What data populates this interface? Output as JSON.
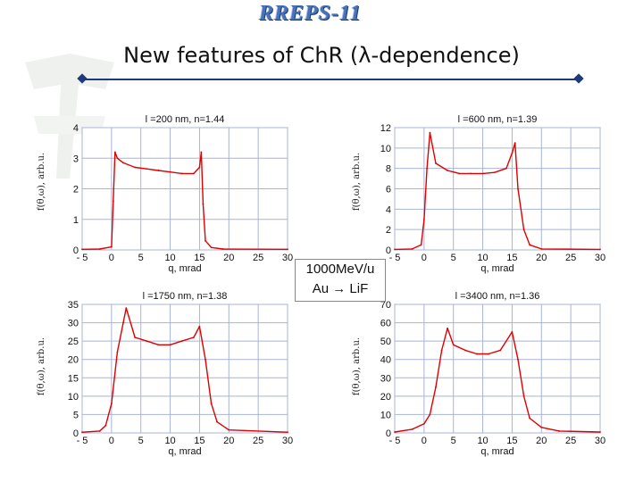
{
  "slide": {
    "logo": "RREPS-11",
    "title": "New features of ChR (λ-dependence)",
    "note_line1": "1000MeV/u",
    "note_line2": "Au → LiF",
    "colors": {
      "curve": "#e00000",
      "grid": "#a8b4d8",
      "rule": "#1f3a7a"
    }
  },
  "chart_data": [
    {
      "type": "line",
      "title": "l =200 nm, n=1.44",
      "xlabel": "q, mrad",
      "ylabel": "f(θ,ω), arb.u.",
      "xlim": [
        -5,
        30
      ],
      "ylim": [
        0,
        4
      ],
      "xticks": [
        -5,
        0,
        5,
        10,
        15,
        20,
        25,
        30
      ],
      "xticklabels": [
        "- 5",
        "0",
        "5",
        "10",
        "15",
        "20",
        "25",
        "30"
      ],
      "yticks": [
        0,
        1,
        2,
        3,
        4
      ],
      "series": [
        {
          "x": [
            -5,
            -2,
            0,
            0.3,
            0.6,
            1,
            2,
            4,
            6,
            8,
            10,
            12,
            14,
            15,
            15.3,
            15.6,
            16,
            17,
            19,
            30
          ],
          "y": [
            0.02,
            0.03,
            0.1,
            1.6,
            3.2,
            3.0,
            2.85,
            2.7,
            2.65,
            2.6,
            2.55,
            2.5,
            2.5,
            2.7,
            3.2,
            1.5,
            0.3,
            0.08,
            0.03,
            0.02
          ]
        }
      ]
    },
    {
      "type": "line",
      "title": "l =600 nm, n=1.39",
      "xlabel": "q, mrad",
      "ylabel": "f(θ,ω), arb.u.",
      "xlim": [
        -5,
        30
      ],
      "ylim": [
        0,
        12
      ],
      "xticks": [
        -5,
        0,
        5,
        10,
        15,
        20,
        25,
        30
      ],
      "xticklabels": [
        "- 5",
        "0",
        "5",
        "10",
        "15",
        "20",
        "25",
        "30"
      ],
      "yticks": [
        0,
        2,
        4,
        6,
        8,
        10,
        12
      ],
      "series": [
        {
          "x": [
            -5,
            -2,
            -0.5,
            0,
            0.5,
            1,
            2,
            4,
            6,
            8,
            10,
            12,
            14,
            15,
            15.5,
            16,
            17,
            18,
            20,
            30
          ],
          "y": [
            0.05,
            0.1,
            0.5,
            3,
            8,
            11.5,
            8.5,
            7.8,
            7.5,
            7.5,
            7.5,
            7.6,
            8.0,
            9.5,
            10.5,
            6,
            2,
            0.5,
            0.1,
            0.05
          ]
        }
      ]
    },
    {
      "type": "line",
      "title": "l =1750 nm, n=1.38",
      "xlabel": "q, mrad",
      "ylabel": "f(θ,ω), arb.u.",
      "xlim": [
        -5,
        30
      ],
      "ylim": [
        0,
        35
      ],
      "xticks": [
        -5,
        0,
        5,
        10,
        15,
        20,
        25,
        30
      ],
      "xticklabels": [
        "- 5",
        "0",
        "5",
        "10",
        "15",
        "20",
        "25",
        "30"
      ],
      "yticks": [
        0,
        5,
        10,
        15,
        20,
        25,
        30,
        35
      ],
      "series": [
        {
          "x": [
            -5,
            -2,
            -1,
            0,
            1,
            2,
            2.5,
            4,
            6,
            8,
            10,
            12,
            14,
            15,
            16,
            17,
            18,
            20,
            30
          ],
          "y": [
            0.2,
            0.5,
            2,
            8,
            22,
            30,
            34,
            26,
            25,
            24,
            24,
            25,
            26,
            29,
            20,
            8,
            3,
            0.8,
            0.2
          ]
        }
      ]
    },
    {
      "type": "line",
      "title": "l =3400 nm, n=1.36",
      "xlabel": "q, mrad",
      "ylabel": "f(θ,ω), arb.u.",
      "xlim": [
        -5,
        30
      ],
      "ylim": [
        0,
        70
      ],
      "xticks": [
        -5,
        0,
        5,
        10,
        15,
        20,
        25,
        30
      ],
      "xticklabels": [
        "- 5",
        "0",
        "5",
        "10",
        "15",
        "20",
        "25",
        "30"
      ],
      "yticks": [
        0,
        10,
        20,
        30,
        40,
        50,
        60,
        70
      ],
      "series": [
        {
          "x": [
            -5,
            -2,
            0,
            1,
            2,
            3,
            4,
            5,
            7,
            9,
            11,
            13,
            15,
            16,
            17,
            18,
            20,
            23,
            30
          ],
          "y": [
            0.5,
            2,
            5,
            10,
            25,
            45,
            57,
            48,
            45,
            43,
            43,
            45,
            55,
            40,
            20,
            8,
            3,
            1,
            0.5
          ]
        }
      ]
    }
  ]
}
